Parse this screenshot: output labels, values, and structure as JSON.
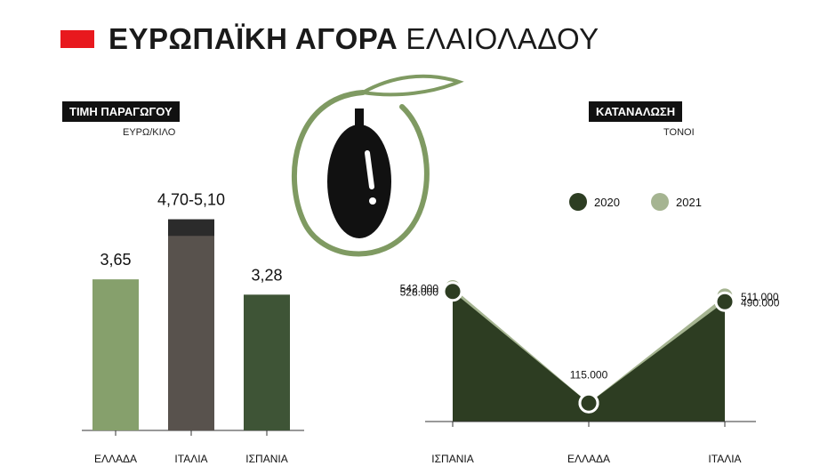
{
  "header": {
    "title_bold": "ΕΥΡΩΠΑΪΚΗ ΑΓΟΡΑ",
    "title_light": "ΕΛΑΙΟΛΑΔΟΥ",
    "accent": "#e8191e"
  },
  "icons": {
    "center": "olive-icon"
  },
  "chart_data": [
    {
      "type": "bar",
      "tag": "ΤΙΜΗ ΠΑΡΑΓΩΓΟΥ",
      "ylabel": "ΕΥΡΩ/ΚΙΛΟ",
      "categories": [
        "ΕΛΛΑΔΑ",
        "ΙΤΑΛΙΑ",
        "ΙΣΠΑΝΙΑ"
      ],
      "values": [
        3.65,
        5.1,
        3.28
      ],
      "range_low": [
        null,
        4.7,
        null
      ],
      "labels": [
        "3,65",
        "4,70-5,10",
        "3,28"
      ],
      "colors": [
        "#86a06c",
        "#58524d",
        "#3e5436"
      ],
      "range_color": "#2b2b2b",
      "ylim": [
        0,
        5.5
      ]
    },
    {
      "type": "area",
      "tag": "ΚΑΤΑΝΑΛΩΣΗ",
      "ylabel": "ΤΟΝΟΙ",
      "categories": [
        "ΙΣΠΑΝΙΑ",
        "ΕΛΛΑΔΑ",
        "ΙΤΑΛΙΑ"
      ],
      "series": [
        {
          "name": "2020",
          "values": [
            528000,
            115000,
            490000
          ],
          "labels": [
            "528.000",
            "115.000",
            "490.000"
          ],
          "color": "#2d3d22"
        },
        {
          "name": "2021",
          "values": [
            542000,
            115000,
            511000
          ],
          "labels": [
            "542.000",
            "115.000",
            "511.000"
          ],
          "color": "#a5b491"
        }
      ],
      "legend": "top"
    }
  ]
}
